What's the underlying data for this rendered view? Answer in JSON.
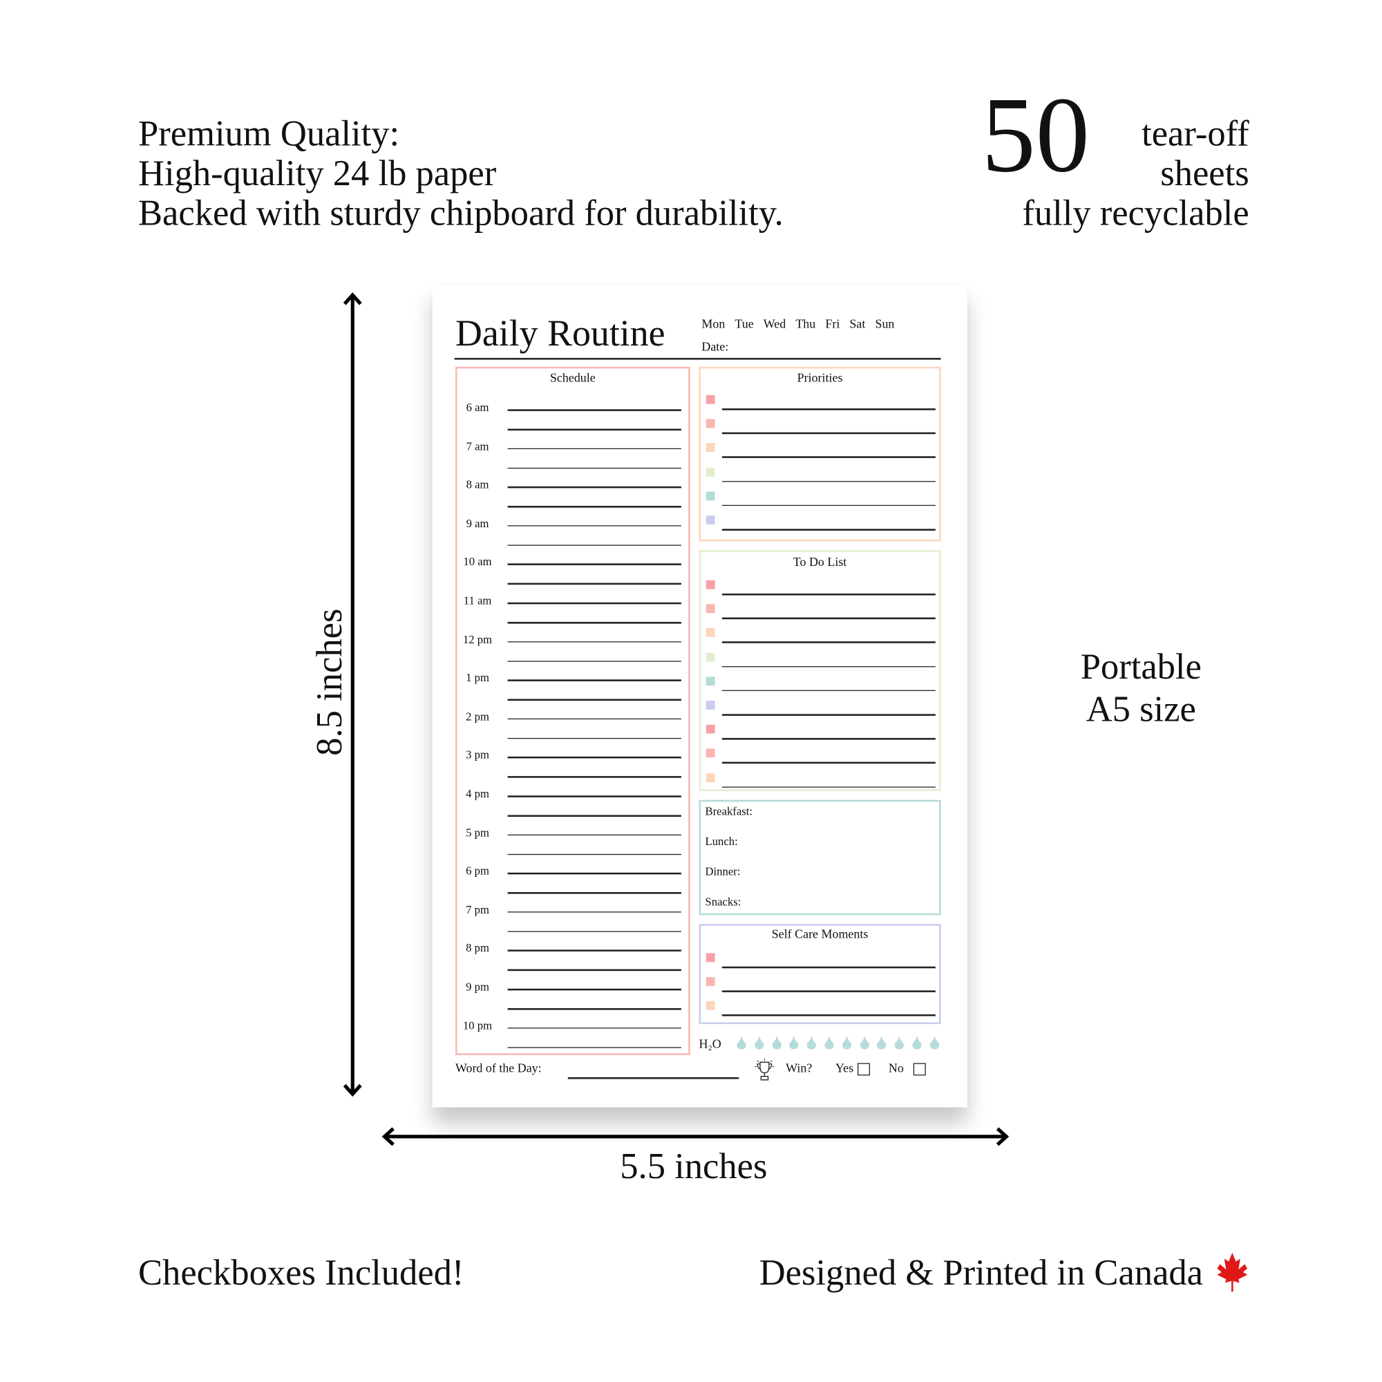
{
  "headline": {
    "lines": [
      "Premium Quality:",
      "High-quality 24 lb paper",
      "Backed with sturdy chipboard for durability."
    ]
  },
  "sheets": {
    "count": "50",
    "label_1": "tear-off",
    "label_2": "sheets",
    "label_3": "fully recyclable"
  },
  "dimensions": {
    "height": "8.5 inches",
    "width": "5.5 inches"
  },
  "size_note": {
    "line_1": "Portable",
    "line_2": "A5 size"
  },
  "footer": {
    "left": "Checkboxes Included!",
    "right": "Designed & Printed in Canada",
    "flag_icon": "maple-leaf-icon"
  },
  "colors": {
    "pink": "#f9a0a6",
    "salmon": "#fbb5b0",
    "peach": "#fdd5bc",
    "green": "#e2efcf",
    "teal": "#b3dcd8",
    "lavender": "#c8cdec",
    "water": "#b6dcda"
  },
  "planner": {
    "title": "Daily Routine",
    "days": [
      "Mon",
      "Tue",
      "Wed",
      "Thu",
      "Fri",
      "Sat",
      "Sun"
    ],
    "date_label": "Date:",
    "schedule": {
      "title": "Schedule",
      "hours": [
        "6 am",
        "7 am",
        "8 am",
        "9 am",
        "10 am",
        "11 am",
        "12 pm",
        "1 pm",
        "2 pm",
        "3 pm",
        "4 pm",
        "5 pm",
        "6 pm",
        "7 pm",
        "8 pm",
        "9 pm",
        "10 pm"
      ]
    },
    "priorities": {
      "title": "Priorities",
      "bullets": [
        "pink",
        "salmon",
        "peach",
        "green",
        "teal",
        "lavender"
      ]
    },
    "todo": {
      "title": "To Do List",
      "bullets": [
        "pink",
        "salmon",
        "peach",
        "green",
        "teal",
        "lavender",
        "pink",
        "salmon",
        "peach"
      ]
    },
    "meals": [
      "Breakfast:",
      "Lunch:",
      "Dinner:",
      "Snacks:"
    ],
    "self_care": {
      "title": "Self Care Moments",
      "bullets": [
        "pink",
        "salmon",
        "peach"
      ]
    },
    "water": {
      "label": "H₂O",
      "drops": 12
    },
    "word_of_day": "Word of the Day:",
    "win": {
      "label": "Win?",
      "yes": "Yes",
      "no": "No",
      "icon": "trophy-icon"
    }
  }
}
